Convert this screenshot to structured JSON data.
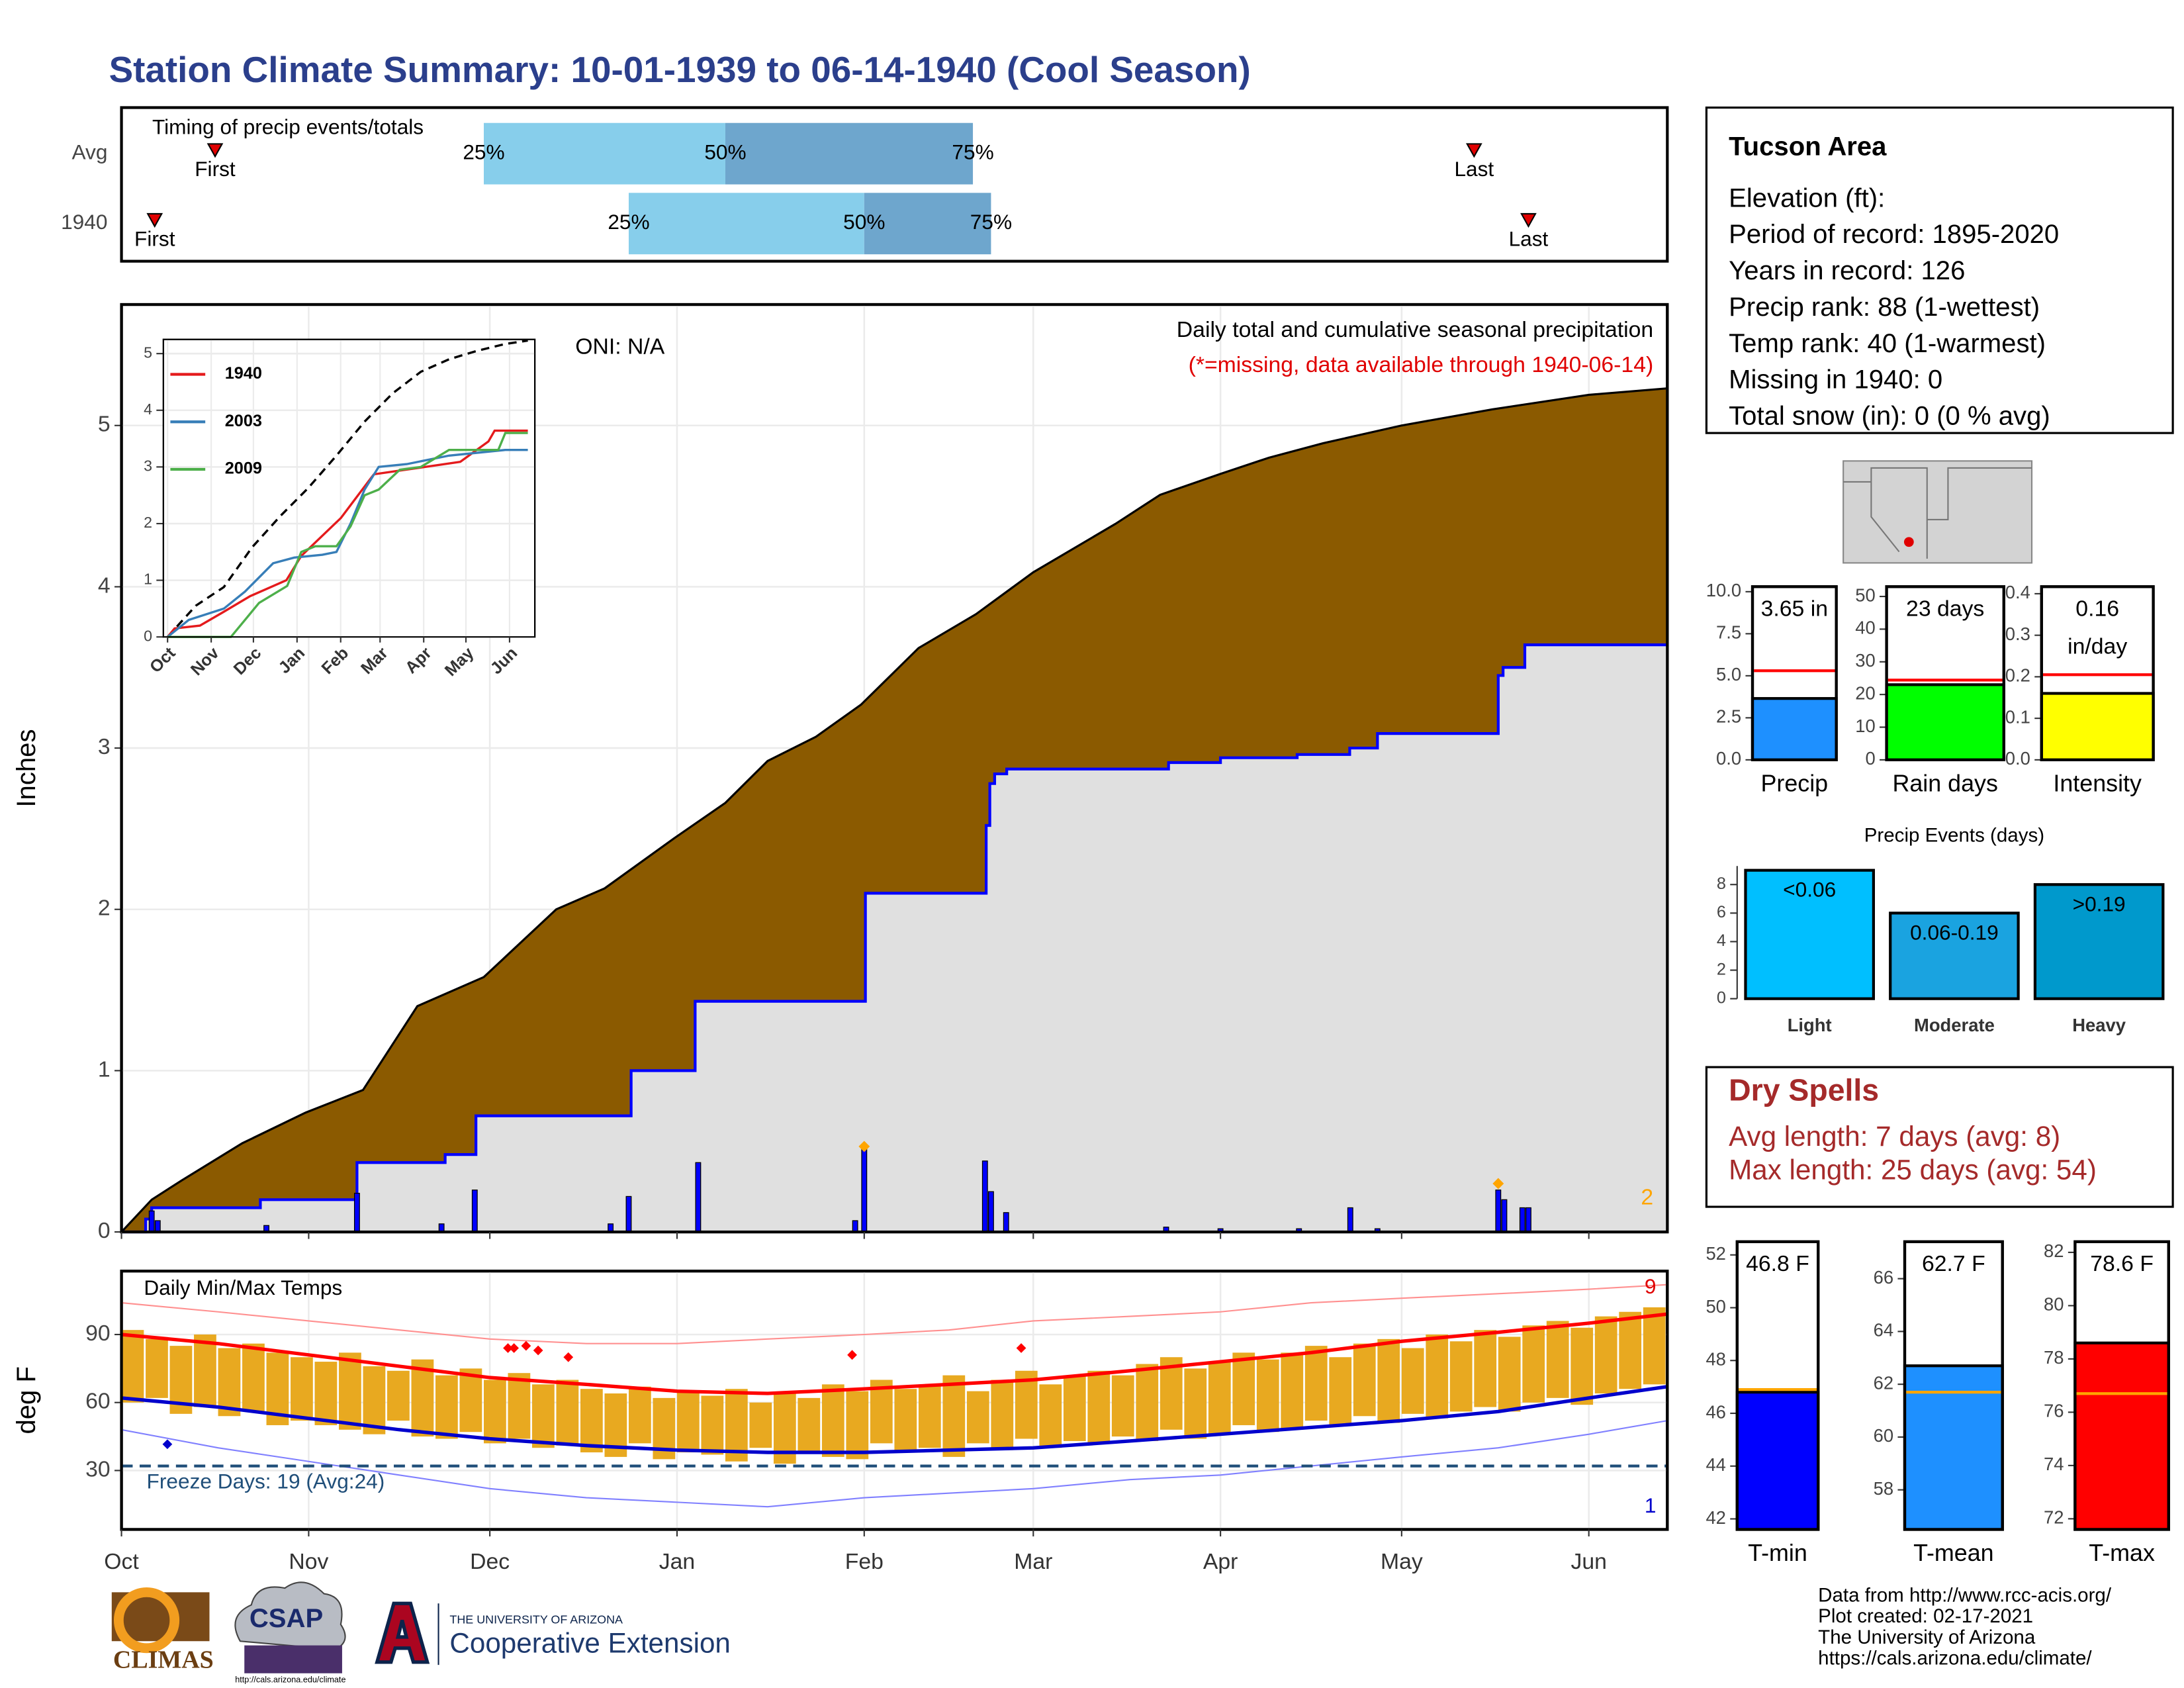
{
  "title": "Station Climate Summary: 10-01-1939 to 06-14-1940 (Cool Season)",
  "chart_data": [
    {
      "type": "timeline",
      "title": "Timing of precip events/totals",
      "categories": [
        "Avg",
        "1940"
      ],
      "xlim": [
        0,
        256
      ],
      "rows": [
        {
          "first": 15.5,
          "q25": 60,
          "q50": 100,
          "q75": 141,
          "last": 224
        },
        {
          "first": 5.5,
          "q25": 84,
          "q50": 123,
          "q75": 144,
          "last": 233
        }
      ],
      "marker_labels": {
        "first": "First",
        "last": "Last",
        "q25": "25%",
        "q50": "50%",
        "q75": "75%"
      },
      "colors": [
        "#87ceeb",
        "#6ea6cd"
      ],
      "marker_color": "#e00000"
    },
    {
      "type": "area",
      "ylabel": "Inches",
      "note": "Daily total and cumulative seasonal precipitation",
      "missing_note": "(*=missing, data available through 1940-06-14)",
      "oni": "ONI: N/A",
      "corner_label": "2",
      "xlim": [
        0,
        256
      ],
      "ylim": [
        0,
        5.75
      ],
      "yticks": [
        0,
        1,
        2,
        3,
        4,
        5
      ],
      "xticks": [
        0,
        31,
        61,
        92,
        123,
        151,
        182,
        212,
        243
      ],
      "grid": true,
      "series": [
        {
          "color": "#8b5a00",
          "outline": "#000000",
          "x": [
            0,
            5,
            10,
            20,
            30.5,
            40,
            49,
            60,
            72,
            80,
            91.5,
            100,
            107,
            115,
            122.5,
            132,
            141.5,
            151,
            164.6,
            172,
            182,
            190,
            199,
            212,
            227,
            243,
            256
          ],
          "values": [
            0,
            0.2,
            0.32,
            0.55,
            0.74,
            0.88,
            1.4,
            1.58,
            2.0,
            2.13,
            2.44,
            2.66,
            2.92,
            3.07,
            3.27,
            3.62,
            3.83,
            4.09,
            4.39,
            4.57,
            4.7,
            4.8,
            4.89,
            5.0,
            5.1,
            5.19,
            5.23
          ]
        },
        {
          "name": "1940",
          "color": "#0000ff",
          "fill": "#e0e0e0",
          "x": [
            0,
            4,
            5,
            23,
            39,
            53.6,
            58.7,
            84.4,
            95,
            123.2,
            143.2,
            143.8,
            144.6,
            146.6,
            173.4,
            182,
            194.7,
            203.4,
            208,
            228,
            228.8,
            232.4,
            256
          ],
          "values": [
            0,
            0.08,
            0.15,
            0.2,
            0.43,
            0.48,
            0.72,
            1.0,
            1.43,
            2.1,
            2.52,
            2.78,
            2.84,
            2.87,
            2.91,
            2.94,
            2.96,
            3.0,
            3.09,
            3.45,
            3.5,
            3.64,
            3.64
          ]
        }
      ],
      "bars": {
        "color": "#0000ff",
        "x": [
          5,
          6,
          24,
          39,
          53,
          58.5,
          81,
          84,
          95.5,
          121.5,
          123,
          143,
          144,
          146.5,
          173,
          182,
          195,
          203.5,
          208,
          228,
          229,
          232,
          233
        ],
        "values": [
          0.13,
          0.07,
          0.04,
          0.24,
          0.05,
          0.26,
          0.05,
          0.22,
          0.43,
          0.07,
          0.53,
          0.44,
          0.25,
          0.12,
          0.03,
          0.02,
          0.02,
          0.15,
          0.02,
          0.26,
          0.2,
          0.15,
          0.15
        ]
      },
      "missing": {
        "color": "#ffa500",
        "x": [
          123,
          228
        ],
        "values": [
          0.53,
          0.3
        ]
      }
    },
    {
      "type": "line",
      "xlim": [
        0,
        256
      ],
      "ylim": [
        0,
        5.25
      ],
      "yticks": [
        0,
        1,
        2,
        3,
        4,
        5
      ],
      "xticks": [
        {
          "value": 0,
          "label": "Oct"
        },
        {
          "value": 31,
          "label": "Nov"
        },
        {
          "value": 61,
          "label": "Dec"
        },
        {
          "value": 92,
          "label": "Jan"
        },
        {
          "value": 123,
          "label": "Feb"
        },
        {
          "value": 151,
          "label": "Mar"
        },
        {
          "value": 182,
          "label": "Apr"
        },
        {
          "value": 212,
          "label": "May"
        },
        {
          "value": 243,
          "label": "Jun"
        }
      ],
      "series": [
        {
          "color": "#000000",
          "dashed": true,
          "x": [
            0,
            20,
            40,
            60,
            80,
            100,
            120,
            140,
            160,
            180,
            200,
            220,
            240,
            256
          ],
          "values": [
            0,
            0.55,
            0.88,
            1.58,
            2.13,
            2.63,
            3.2,
            3.8,
            4.3,
            4.68,
            4.9,
            5.05,
            5.17,
            5.23
          ]
        },
        {
          "name": "1940",
          "color": "#e41a1c",
          "x": [
            0,
            5,
            23,
            39,
            58.7,
            84.4,
            95,
            123.2,
            143.8,
            146.6,
            208,
            228,
            232.4,
            256
          ],
          "values": [
            0,
            0.15,
            0.2,
            0.43,
            0.72,
            1.0,
            1.43,
            2.1,
            2.78,
            2.87,
            3.09,
            3.45,
            3.64,
            3.64
          ]
        },
        {
          "name": "2003",
          "color": "#377eb8",
          "x": [
            0,
            15,
            40,
            55,
            75,
            90,
            110,
            120,
            130,
            140,
            150,
            170,
            200,
            240,
            256
          ],
          "values": [
            0,
            0.3,
            0.5,
            0.8,
            1.3,
            1.4,
            1.45,
            1.5,
            2.0,
            2.6,
            3.0,
            3.05,
            3.2,
            3.3,
            3.3
          ]
        },
        {
          "name": "2009",
          "color": "#4daf4a",
          "x": [
            0,
            45,
            55,
            65,
            85,
            95,
            105,
            120,
            130,
            140,
            150,
            165,
            180,
            200,
            235,
            240,
            256
          ],
          "values": [
            0,
            0,
            0.3,
            0.6,
            0.9,
            1.5,
            1.6,
            1.6,
            1.95,
            2.5,
            2.6,
            2.95,
            3.0,
            3.3,
            3.3,
            3.6,
            3.6
          ]
        }
      ]
    },
    {
      "type": "range",
      "title": "Daily Min/Max Temps",
      "ylabel": "deg F",
      "freeze": 32,
      "freeze_text": "Freeze Days: 19 (Avg:24)",
      "high_label": "9",
      "low_label": "1",
      "xlim": [
        0,
        256
      ],
      "ylim": [
        4,
        118
      ],
      "yticks": [
        30,
        60,
        90
      ],
      "xticks": [
        {
          "value": 0,
          "label": "Oct"
        },
        {
          "value": 31,
          "label": "Nov"
        },
        {
          "value": 61,
          "label": "Dec"
        },
        {
          "value": 92,
          "label": "Jan"
        },
        {
          "value": 123,
          "label": "Feb"
        },
        {
          "value": 151,
          "label": "Mar"
        },
        {
          "value": 182,
          "label": "Apr"
        },
        {
          "value": 212,
          "label": "May"
        },
        {
          "value": 243,
          "label": "Jun"
        }
      ],
      "bars": {
        "color": "#e8a920",
        "x": [
          0,
          4,
          8,
          12,
          16,
          20,
          24,
          28,
          32,
          36,
          40,
          44,
          48,
          52,
          56,
          60,
          64,
          68,
          72,
          76,
          80,
          84,
          88,
          92,
          96,
          100,
          104,
          108,
          112,
          116,
          120,
          124,
          128,
          132,
          136,
          140,
          144,
          148,
          152,
          156,
          160,
          164,
          168,
          172,
          176,
          180,
          184,
          188,
          192,
          196,
          200,
          204,
          208,
          212,
          216,
          220,
          224,
          228,
          232,
          236,
          240,
          244,
          248,
          252
        ],
        "high": [
          92,
          88,
          85,
          90,
          84,
          86,
          82,
          80,
          78,
          82,
          76,
          74,
          79,
          72,
          75,
          70,
          73,
          68,
          70,
          66,
          64,
          67,
          62,
          65,
          63,
          66,
          60,
          64,
          62,
          68,
          65,
          70,
          66,
          68,
          72,
          65,
          70,
          74,
          68,
          72,
          74,
          72,
          77,
          80,
          75,
          78,
          82,
          79,
          82,
          85,
          80,
          86,
          88,
          84,
          90,
          87,
          92,
          89,
          94,
          96,
          93,
          98,
          100,
          102
        ],
        "low": [
          60,
          62,
          55,
          58,
          54,
          56,
          50,
          52,
          50,
          48,
          46,
          52,
          45,
          44,
          47,
          42,
          44,
          40,
          41,
          38,
          36,
          42,
          35,
          38,
          37,
          34,
          40,
          33,
          38,
          36,
          35,
          42,
          38,
          40,
          36,
          42,
          39,
          44,
          40,
          43,
          42,
          45,
          43,
          48,
          44,
          46,
          50,
          47,
          48,
          52,
          50,
          54,
          51,
          55,
          53,
          56,
          58,
          56,
          60,
          62,
          59,
          64,
          66,
          68
        ]
      },
      "series": [
        {
          "color": "#ff0000",
          "width": 2.5,
          "x": [
            0,
            16,
            31,
            46,
            61,
            77,
            92,
            107,
            123,
            137,
            151,
            167,
            182,
            197,
            212,
            228,
            243,
            256
          ],
          "values": [
            90,
            86,
            81,
            76,
            71,
            68,
            65,
            64,
            66,
            68,
            70,
            74,
            78,
            82,
            87,
            91,
            95,
            99
          ]
        },
        {
          "color": "#0000cc",
          "width": 2.5,
          "x": [
            0,
            16,
            31,
            46,
            61,
            77,
            92,
            107,
            123,
            137,
            151,
            167,
            182,
            197,
            212,
            228,
            243,
            256
          ],
          "values": [
            62,
            58,
            53,
            48,
            44,
            41,
            39,
            38,
            38,
            39,
            40,
            43,
            46,
            49,
            52,
            56,
            62,
            67
          ]
        },
        {
          "color": "#ff9090",
          "width": 1,
          "x": [
            0,
            16,
            31,
            46,
            61,
            77,
            92,
            107,
            123,
            137,
            151,
            167,
            182,
            197,
            212,
            228,
            243,
            256
          ],
          "values": [
            104,
            100,
            96,
            92,
            88,
            86,
            86,
            88,
            90,
            92,
            96,
            98,
            100,
            104,
            106,
            108,
            110,
            112
          ]
        },
        {
          "color": "#8080ff",
          "width": 1,
          "x": [
            0,
            16,
            31,
            46,
            61,
            77,
            92,
            107,
            123,
            137,
            151,
            167,
            182,
            197,
            212,
            228,
            243,
            256
          ],
          "values": [
            48,
            40,
            34,
            28,
            22,
            18,
            16,
            14,
            18,
            20,
            22,
            26,
            28,
            32,
            36,
            40,
            46,
            52
          ]
        }
      ],
      "record_highs": {
        "color": "#ff0000",
        "x": [
          64,
          65,
          67,
          69,
          74,
          121,
          149
        ],
        "values": [
          84,
          84,
          85,
          83,
          80,
          81,
          84
        ]
      },
      "record_lows": {
        "color": "#0000cc",
        "x": [
          7.6
        ],
        "values": [
          41.6
        ]
      }
    },
    {
      "type": "bar",
      "categories": [
        "Precip"
      ],
      "values": [
        3.65
      ],
      "value_labels": [
        "3.65 in"
      ],
      "color": "#1e90ff",
      "avg": 5.3,
      "avg_color": "#ff0000",
      "ylim": [
        0,
        10.3
      ],
      "yticks": [
        {
          "value": 0,
          "label": "0.0"
        },
        2.5,
        {
          "value": 5,
          "label": "5.0"
        },
        7.5,
        {
          "value": 10,
          "label": "10.0"
        }
      ]
    },
    {
      "type": "bar",
      "categories": [
        "Rain days"
      ],
      "values": [
        23
      ],
      "value_labels": [
        "23 days"
      ],
      "color": "#00ff00",
      "avg": 24.4,
      "avg_color": "#ff0000",
      "ylim": [
        0,
        53
      ],
      "yticks": [
        0,
        10,
        20,
        30,
        40,
        50
      ]
    },
    {
      "type": "bar",
      "categories": [
        "Intensity"
      ],
      "values": [
        0.16
      ],
      "value_labels": [
        "0.16 in/day"
      ],
      "color": "#ffff00",
      "avg": 0.205,
      "avg_color": "#ff0000",
      "ylim": [
        0,
        0.417
      ],
      "yticks": [
        {
          "value": 0,
          "label": "0.0"
        },
        0.1,
        0.2,
        0.3,
        0.4
      ]
    },
    {
      "type": "bar",
      "title": "Precip Events (days)",
      "categories": [
        "Light",
        "Moderate",
        "Heavy"
      ],
      "values": [
        9,
        6,
        8
      ],
      "bin_labels": [
        "<0.06",
        "0.06-0.19",
        ">0.19"
      ],
      "colors": [
        "#00bfff",
        "#1aa3e0",
        "#0099cc"
      ],
      "ylim": [
        0,
        9.3
      ],
      "yticks": [
        0,
        2,
        4,
        6,
        8
      ]
    },
    {
      "type": "bar",
      "categories": [
        "T-min"
      ],
      "values": [
        46.8
      ],
      "value_labels": [
        "46.8 F"
      ],
      "color": "#0000ff",
      "avg": 46.9,
      "avg_color": "#ffa500",
      "ylim": [
        41.6,
        52.5
      ],
      "yticks": [
        42,
        44,
        46,
        48,
        50,
        52
      ]
    },
    {
      "type": "bar",
      "categories": [
        "T-mean"
      ],
      "values": [
        62.7
      ],
      "value_labels": [
        "62.7 F"
      ],
      "color": "#1e90ff",
      "avg": 61.7,
      "avg_color": "#ffa500",
      "ylim": [
        56.5,
        67.4
      ],
      "yticks": [
        58,
        60,
        62,
        64,
        66
      ]
    },
    {
      "type": "bar",
      "categories": [
        "T-max"
      ],
      "values": [
        78.6
      ],
      "value_labels": [
        "78.6 F"
      ],
      "color": "#ff0000",
      "avg": 76.7,
      "avg_color": "#ffa500",
      "ylim": [
        71.6,
        82.4
      ],
      "yticks": [
        72,
        74,
        76,
        78,
        80,
        82
      ]
    }
  ],
  "info": {
    "title": "Tucson Area",
    "lines": [
      "Elevation (ft):",
      "Period of record: 1895-2020",
      "Years in record: 126",
      "Precip rank: 88 (1-wettest)",
      "Temp rank: 40 (1-warmest)",
      "Missing in 1940: 0",
      "Total snow (in): 0 (0 % avg)"
    ]
  },
  "dry_spells": {
    "title": "Dry Spells",
    "lines": [
      "Avg length: 7 days (avg: 8)",
      "Max length: 25 days (avg: 54)"
    ]
  },
  "footer": [
    "Data from http://www.rcc-acis.org/",
    "Plot created: 02-17-2021",
    "The University of Arizona",
    "https://cals.arizona.edu/climate/"
  ],
  "logos": {
    "climas": "CLIMAS",
    "csap": "CSAP",
    "csap_url": "http://cals.arizona.edu/climate",
    "ua": "THE UNIVERSITY OF ARIZONA",
    "extension": "Cooperative Extension"
  }
}
